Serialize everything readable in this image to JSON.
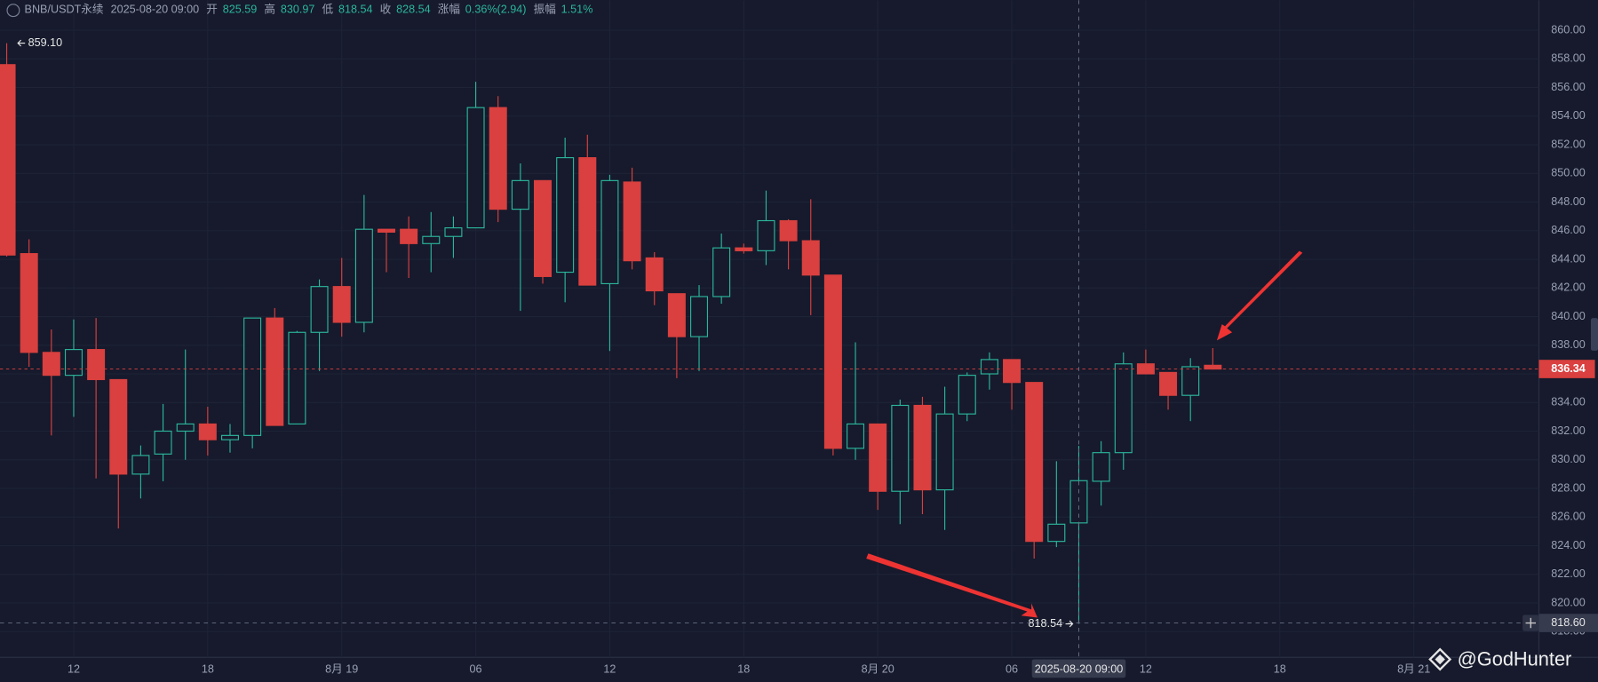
{
  "header": {
    "symbol": "BNB/USDT永续",
    "labels": [
      "开",
      "高",
      "低",
      "收",
      "涨幅",
      "振幅"
    ],
    "change": "0.36%(2.94)",
    "amplitude": "1.51%"
  },
  "watermark": "@GodHunter",
  "chart_data": {
    "type": "candlestick",
    "up_color": "#2bb59b",
    "down_color": "#d9403f",
    "grid": true,
    "open": [
      857.6,
      844.4,
      837.5,
      835.9,
      837.7,
      835.6,
      829.0,
      830.4,
      832.0,
      832.5,
      831.4,
      831.7,
      839.9,
      832.5,
      838.9,
      842.1,
      839.6,
      846.1,
      846.1,
      845.1,
      845.6,
      846.2,
      854.6,
      847.5,
      849.5,
      843.1,
      851.1,
      842.3,
      849.4,
      844.1,
      841.6,
      838.6,
      841.4,
      844.8,
      844.6,
      846.7,
      845.3,
      842.9,
      830.8,
      832.5,
      827.8,
      833.8,
      827.9,
      833.2,
      836.0,
      837.0,
      835.4,
      824.3,
      825.59,
      828.5,
      830.5,
      836.7,
      836.1,
      834.5,
      836.6
    ],
    "high": [
      859.1,
      845.4,
      839.1,
      839.8,
      839.9,
      835.6,
      831.0,
      833.9,
      837.7,
      833.7,
      832.5,
      839.9,
      840.6,
      839.0,
      842.6,
      844.1,
      848.5,
      846.1,
      847.0,
      847.3,
      847.0,
      856.4,
      855.4,
      850.7,
      849.5,
      852.5,
      852.7,
      849.9,
      850.4,
      844.5,
      841.6,
      842.2,
      845.8,
      845.1,
      848.8,
      846.8,
      848.2,
      842.9,
      838.2,
      832.5,
      834.2,
      834.4,
      835.1,
      836.1,
      837.5,
      837.0,
      835.4,
      829.9,
      830.97,
      831.3,
      837.5,
      837.7,
      836.1,
      837.1,
      837.8
    ],
    "low": [
      844.2,
      836.5,
      831.7,
      833.0,
      828.7,
      825.2,
      827.3,
      828.5,
      830.0,
      830.3,
      830.5,
      830.8,
      832.4,
      832.5,
      836.2,
      838.6,
      838.9,
      843.1,
      842.7,
      843.1,
      844.1,
      846.2,
      846.6,
      840.4,
      842.3,
      841.0,
      842.2,
      837.6,
      843.3,
      840.8,
      835.7,
      836.2,
      840.9,
      844.4,
      843.6,
      843.3,
      840.1,
      830.3,
      830.0,
      826.5,
      825.5,
      826.2,
      825.1,
      832.7,
      834.9,
      833.5,
      823.1,
      823.9,
      818.54,
      826.8,
      829.3,
      836.0,
      833.5,
      832.7,
      836.3
    ],
    "close": [
      844.3,
      837.5,
      835.9,
      837.7,
      835.6,
      829.0,
      830.3,
      832.0,
      832.5,
      831.4,
      831.7,
      839.9,
      832.4,
      838.9,
      842.1,
      839.6,
      846.1,
      845.9,
      845.1,
      845.6,
      846.2,
      854.6,
      847.5,
      849.5,
      842.8,
      851.1,
      842.2,
      849.5,
      843.9,
      841.8,
      838.6,
      841.4,
      844.8,
      844.6,
      846.7,
      845.3,
      842.9,
      830.8,
      832.5,
      827.8,
      833.8,
      827.9,
      833.2,
      835.9,
      837.0,
      835.4,
      824.3,
      825.5,
      828.54,
      830.5,
      836.7,
      836.0,
      834.5,
      836.5,
      836.34
    ],
    "xlim": [
      -0.3,
      68.6
    ],
    "xticks": [
      {
        "value": 3,
        "label": "12"
      },
      {
        "value": 9,
        "label": "18"
      },
      {
        "value": 15,
        "label": "8月 19"
      },
      {
        "value": 21,
        "label": "06"
      },
      {
        "value": 27,
        "label": "12"
      },
      {
        "value": 33,
        "label": "18"
      },
      {
        "value": 39,
        "label": "8月 20"
      },
      {
        "value": 45,
        "label": "06"
      },
      {
        "value": 51,
        "label": "12"
      },
      {
        "value": 57,
        "label": "18"
      },
      {
        "value": 63,
        "label": "8月 21"
      }
    ],
    "ylim": [
      816.2,
      862.1
    ],
    "yticks": [
      {
        "value": 818,
        "label": "818.00"
      },
      {
        "value": 820,
        "label": "820.00"
      },
      {
        "value": 822,
        "label": "822.00"
      },
      {
        "value": 824,
        "label": "824.00"
      },
      {
        "value": 826,
        "label": "826.00"
      },
      {
        "value": 828,
        "label": "828.00"
      },
      {
        "value": 830,
        "label": "830.00"
      },
      {
        "value": 832,
        "label": "832.00"
      },
      {
        "value": 834,
        "label": "834.00"
      },
      {
        "value": 836,
        "label": "836.00"
      },
      {
        "value": 838,
        "label": "838.00"
      },
      {
        "value": 840,
        "label": "840.00"
      },
      {
        "value": 842,
        "label": "842.00"
      },
      {
        "value": 844,
        "label": "844.00"
      },
      {
        "value": 846,
        "label": "846.00"
      },
      {
        "value": 848,
        "label": "848.00"
      },
      {
        "value": 850,
        "label": "850.00"
      },
      {
        "value": 852,
        "label": "852.00"
      },
      {
        "value": 854,
        "label": "854.00"
      },
      {
        "value": 856,
        "label": "856.00"
      },
      {
        "value": 858,
        "label": "858.00"
      },
      {
        "value": 860,
        "label": "860.00"
      }
    ],
    "max_label": {
      "value": 859.1,
      "label": "859.10"
    },
    "crosshair": {
      "x": 48,
      "x_label": "2025-08-20 09:00",
      "y": 818.6,
      "y_label": "818.60"
    }
  }
}
